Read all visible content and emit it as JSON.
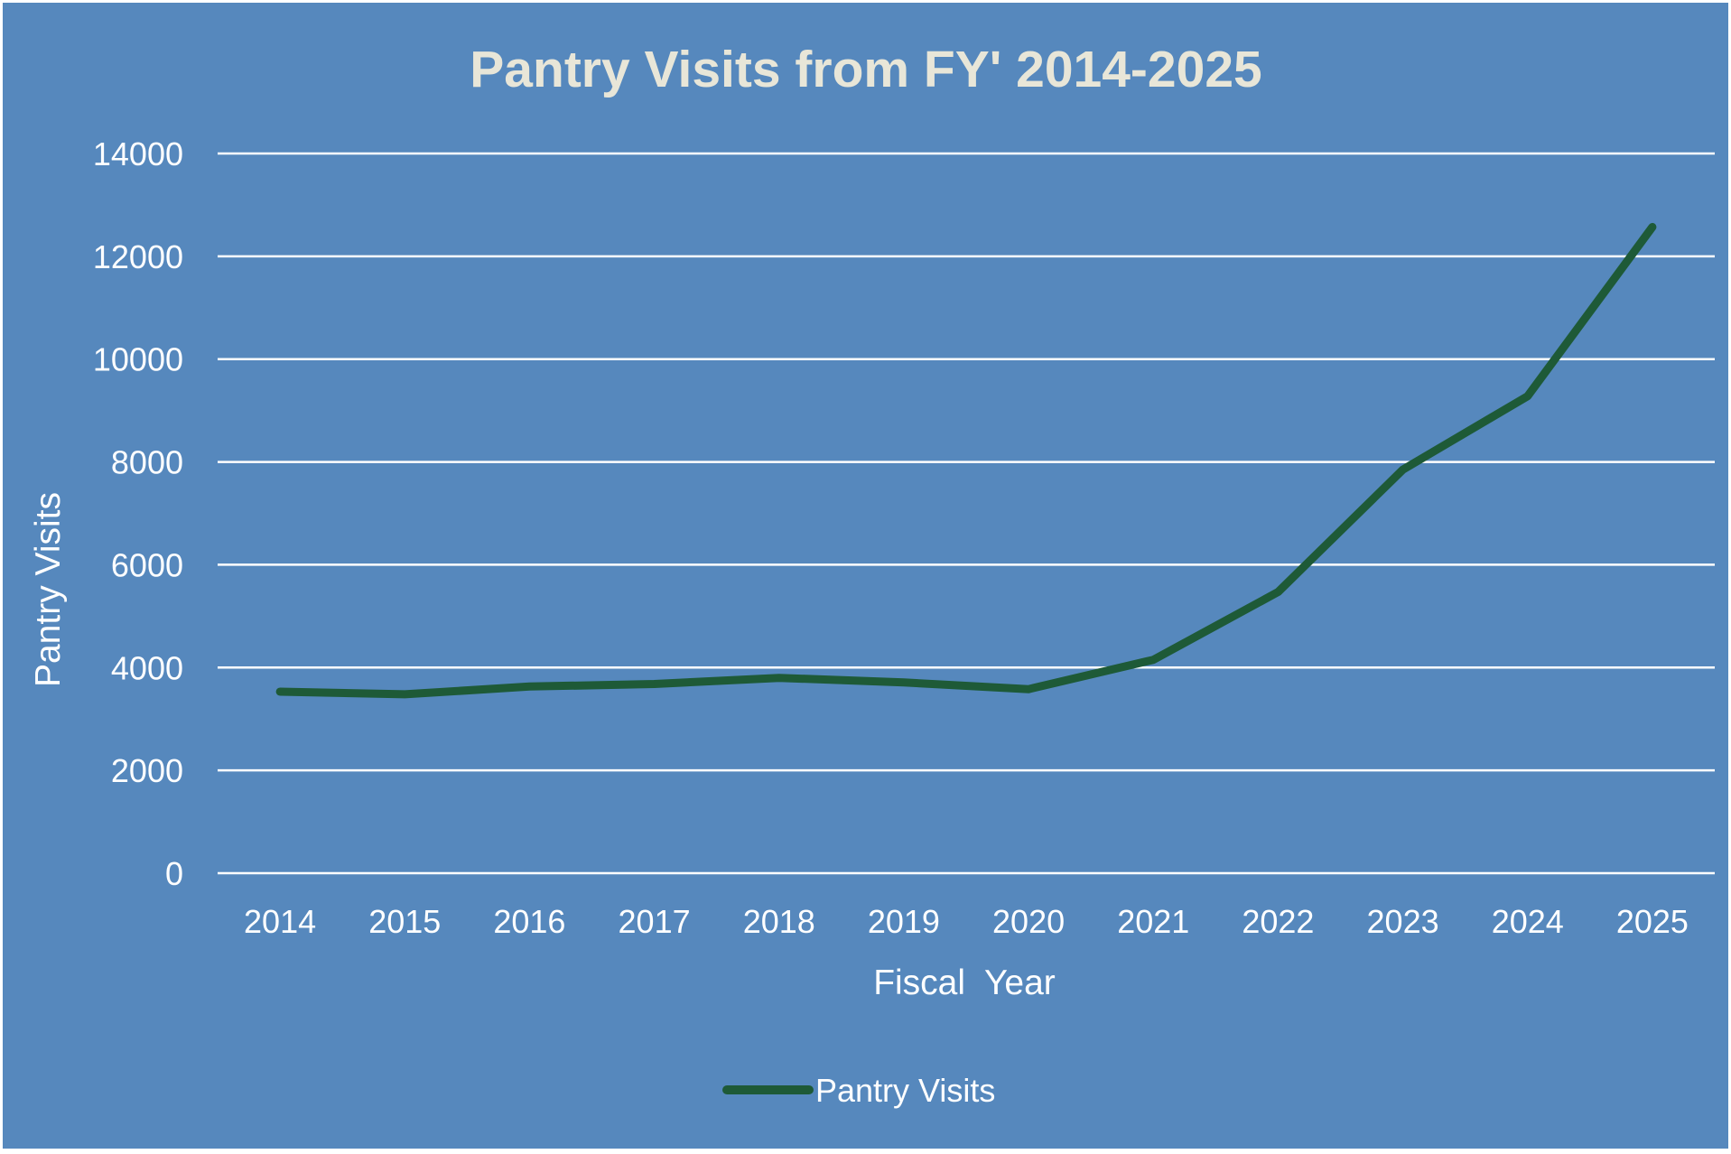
{
  "chart_data": {
    "type": "line",
    "title": "Pantry Visits from FY' 2014-2025",
    "xlabel": "Fiscal  Year",
    "ylabel": "Pantry Visits",
    "categories": [
      "2014",
      "2015",
      "2016",
      "2017",
      "2018",
      "2019",
      "2020",
      "2021",
      "2022",
      "2023",
      "2024",
      "2025"
    ],
    "series": [
      {
        "name": "Pantry Visits",
        "color": "#1e5a37",
        "values": [
          3530,
          3480,
          3630,
          3680,
          3800,
          3710,
          3580,
          4150,
          5470,
          7850,
          9280,
          12570
        ]
      }
    ],
    "ylim": [
      0,
      14000
    ],
    "yticks": [
      "0",
      "2000",
      "4000",
      "6000",
      "8000",
      "10000",
      "12000",
      "14000"
    ],
    "grid": "horizontal",
    "legend": "bottom-center"
  },
  "colors": {
    "background": "#5688bd",
    "title": "#e8e6d8",
    "text": "#ffffff",
    "gridline": "#ffffff",
    "series": "#1e5a37"
  }
}
